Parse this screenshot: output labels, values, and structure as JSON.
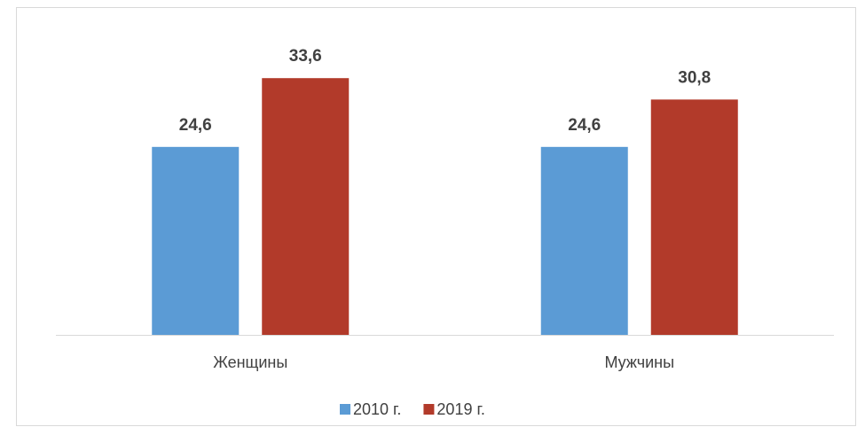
{
  "chart_data": {
    "type": "bar",
    "categories": [
      "Женщины",
      "Мужчины"
    ],
    "series": [
      {
        "name": "2010 г.",
        "color": "#5b9bd5",
        "values": [
          24.6,
          24.6
        ],
        "value_labels": [
          "24,6",
          "24,6"
        ]
      },
      {
        "name": "2019 г.",
        "color": "#b23a2a",
        "values": [
          33.6,
          30.8
        ],
        "value_labels": [
          "33,6",
          "30,8"
        ]
      }
    ],
    "ylim": [
      0,
      40
    ],
    "legend": "bottom"
  }
}
